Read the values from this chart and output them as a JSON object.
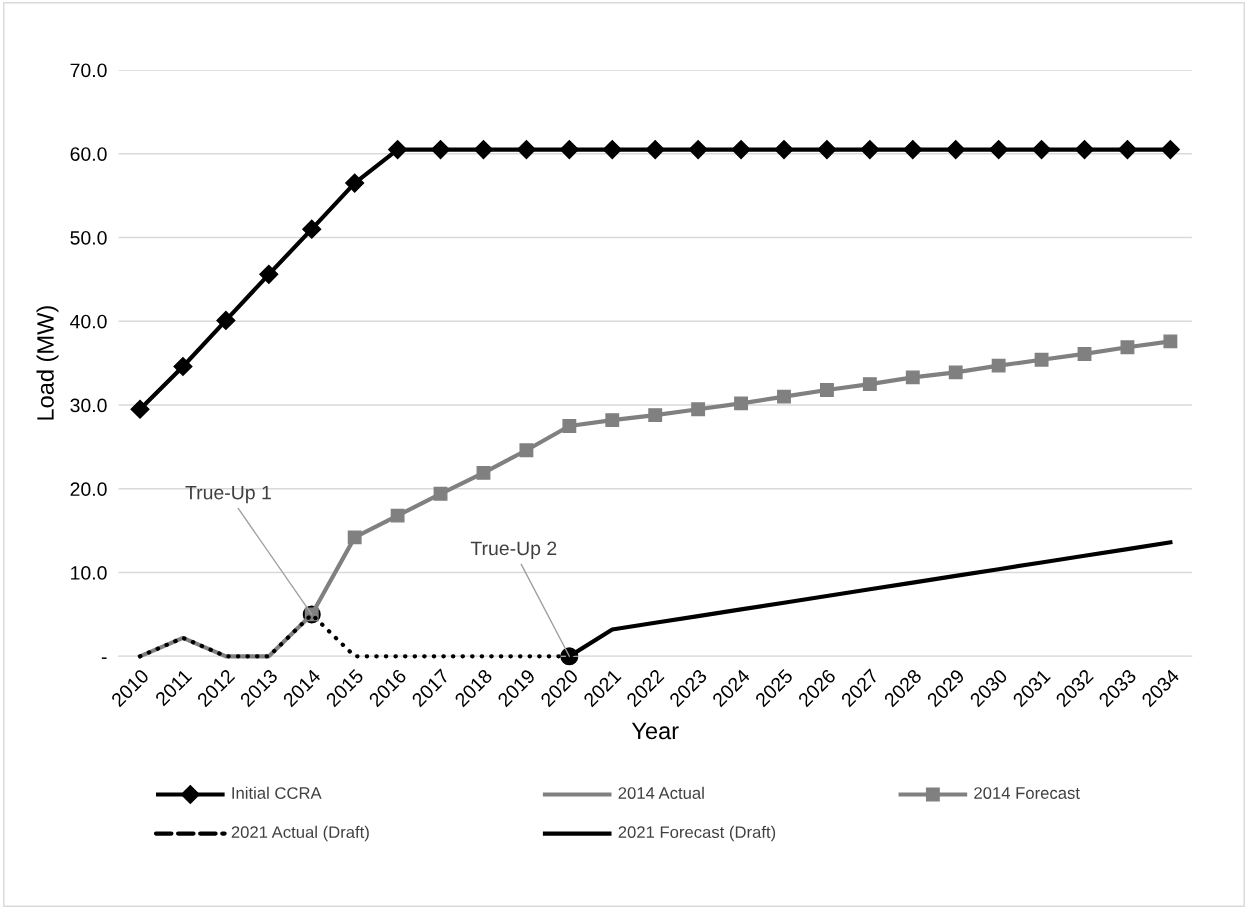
{
  "chart_data": {
    "type": "line",
    "xlabel": "Year",
    "ylabel": "Load (MW)",
    "categories": [
      "2010",
      "2011",
      "2012",
      "2013",
      "2014",
      "2015",
      "2016",
      "2017",
      "2018",
      "2019",
      "2020",
      "2021",
      "2022",
      "2023",
      "2024",
      "2025",
      "2026",
      "2027",
      "2028",
      "2029",
      "2030",
      "2031",
      "2032",
      "2033",
      "2034"
    ],
    "series": [
      {
        "name": "Initial CCRA",
        "color": "#000000",
        "marker": "diamond",
        "line_style": "solid",
        "values": [
          29.5,
          34.6,
          40.1,
          45.6,
          51.0,
          56.5,
          60.5,
          60.5,
          60.5,
          60.5,
          60.5,
          60.5,
          60.5,
          60.5,
          60.5,
          60.5,
          60.5,
          60.5,
          60.5,
          60.5,
          60.5,
          60.5,
          60.5,
          60.5,
          60.5
        ]
      },
      {
        "name": "2014 Actual",
        "color": "#808080",
        "marker": "none",
        "line_style": "solid",
        "values": [
          0,
          2.2,
          0,
          0,
          5.0,
          null,
          null,
          null,
          null,
          null,
          null,
          null,
          null,
          null,
          null,
          null,
          null,
          null,
          null,
          null,
          null,
          null,
          null,
          null,
          null
        ]
      },
      {
        "name": "2014 Forecast",
        "color": "#808080",
        "marker": "square",
        "line_style": "solid",
        "values": [
          null,
          null,
          null,
          null,
          5.0,
          14.2,
          16.8,
          19.4,
          21.9,
          24.6,
          27.5,
          28.2,
          28.8,
          29.5,
          30.2,
          31.0,
          31.8,
          32.5,
          33.3,
          33.9,
          34.7,
          35.4,
          36.1,
          36.9,
          37.6
        ]
      },
      {
        "name": "2021 Actual (Draft)",
        "color": "#000000",
        "marker": "none",
        "line_style": "dotted",
        "values": [
          0,
          2.2,
          0,
          0,
          5.0,
          0,
          0,
          0,
          0,
          0,
          0,
          null,
          null,
          null,
          null,
          null,
          null,
          null,
          null,
          null,
          null,
          null,
          null,
          null,
          null
        ]
      },
      {
        "name": "2021 Forecast (Draft)",
        "color": "#000000",
        "marker": "none",
        "line_style": "solid",
        "values": [
          null,
          null,
          null,
          null,
          null,
          null,
          null,
          null,
          null,
          null,
          0,
          3.2,
          4.0,
          4.8,
          5.6,
          6.4,
          7.2,
          8.0,
          8.8,
          9.6,
          10.4,
          11.2,
          12.0,
          12.8,
          13.6
        ]
      }
    ],
    "annotations": [
      {
        "text": "True-Up 1",
        "x": "2014",
        "y": 5.0
      },
      {
        "text": "True-Up 2",
        "x": "2020",
        "y": 0
      }
    ],
    "ylim": [
      0,
      70
    ],
    "yticks": [
      {
        "value": 0,
        "label": "-"
      },
      {
        "value": 10,
        "label": "10.0"
      },
      {
        "value": 20,
        "label": "20.0"
      },
      {
        "value": 30,
        "label": "30.0"
      },
      {
        "value": 40,
        "label": "40.0"
      },
      {
        "value": 50,
        "label": "50.0"
      },
      {
        "value": 60,
        "label": "60.0"
      },
      {
        "value": 70,
        "label": "70.0"
      }
    ],
    "grid": "y",
    "legend": "bottom"
  }
}
